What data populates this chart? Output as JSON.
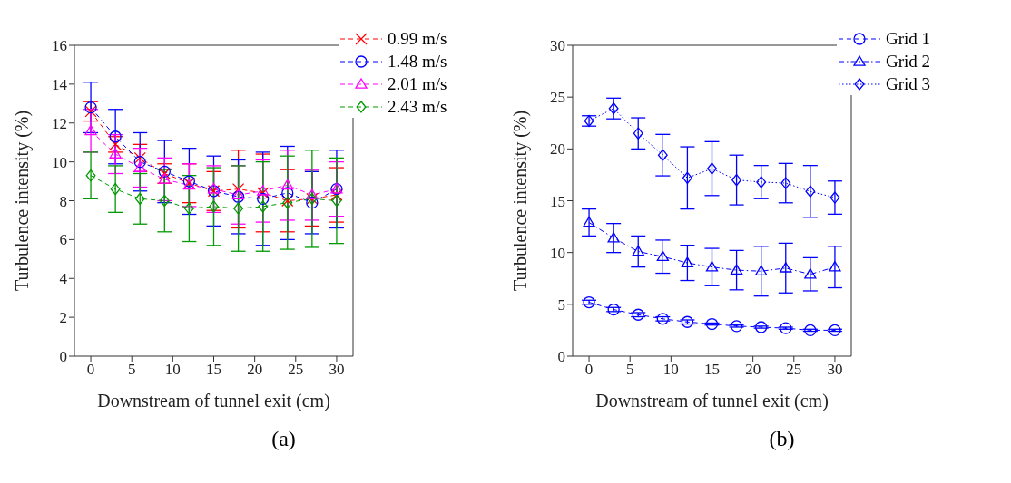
{
  "chart_data": [
    {
      "type": "line",
      "x": [
        0,
        3,
        6,
        9,
        12,
        15,
        18,
        21,
        24,
        27,
        30
      ],
      "xlabel": "Downstream of tunnel exit (cm)",
      "ylabel": "Turbulence intensity (%)",
      "xlim": [
        -2,
        32
      ],
      "xticks": [
        0,
        5,
        10,
        15,
        20,
        25,
        30
      ],
      "ylim": [
        0,
        16
      ],
      "yticks": [
        0,
        2,
        4,
        6,
        8,
        10,
        12,
        14,
        16
      ],
      "legend": "top right",
      "line_style": "dashed",
      "annotations": [
        "(a)"
      ],
      "series": [
        {
          "name": "0.99 m/s",
          "color": "#ff0000",
          "marker": "cross",
          "values": [
            12.6,
            10.9,
            10.2,
            9.4,
            8.9,
            8.5,
            8.6,
            8.4,
            8.0,
            8.1,
            8.3
          ],
          "errors": [
            0.5,
            0.4,
            0.7,
            0.5,
            1.0,
            1.0,
            2.0,
            2.0,
            1.6,
            1.4,
            1.4
          ]
        },
        {
          "name": "1.48 m/s",
          "color": "#0000ff",
          "marker": "circle",
          "values": [
            12.8,
            11.3,
            10.0,
            9.5,
            9.0,
            8.5,
            8.2,
            8.1,
            8.4,
            7.9,
            8.6
          ],
          "errors": [
            1.3,
            1.4,
            1.5,
            1.6,
            1.7,
            1.8,
            1.9,
            2.4,
            2.4,
            1.6,
            2.0
          ]
        },
        {
          "name": "2.01 m/s",
          "color": "#ff00ff",
          "marker": "triangle",
          "values": [
            11.6,
            10.4,
            9.7,
            9.1,
            8.8,
            8.6,
            8.3,
            8.5,
            8.8,
            8.3,
            8.6
          ],
          "errors": [
            1.1,
            1.0,
            1.0,
            1.1,
            1.1,
            1.2,
            1.5,
            1.6,
            1.8,
            1.3,
            1.4
          ]
        },
        {
          "name": "2.43 m/s",
          "color": "#009900",
          "marker": "diamond",
          "values": [
            9.3,
            8.6,
            8.1,
            8.0,
            7.6,
            7.7,
            7.6,
            7.7,
            7.9,
            8.1,
            8.0
          ],
          "errors": [
            1.2,
            1.2,
            1.3,
            1.6,
            1.7,
            2.0,
            2.2,
            2.3,
            2.4,
            2.5,
            2.2
          ]
        }
      ]
    },
    {
      "type": "line",
      "x": [
        0,
        3,
        6,
        9,
        12,
        15,
        18,
        21,
        24,
        27,
        30
      ],
      "xlabel": "Downstream of tunnel exit (cm)",
      "ylabel": "Turbulence intensity (%)",
      "xlim": [
        -2,
        32
      ],
      "xticks": [
        0,
        5,
        10,
        15,
        20,
        25,
        30
      ],
      "ylim": [
        0,
        30
      ],
      "yticks": [
        0,
        5,
        10,
        15,
        20,
        25,
        30
      ],
      "legend": "top right",
      "annotations": [
        "(b)"
      ],
      "series": [
        {
          "name": "Grid 1",
          "color": "#0000ff",
          "marker": "circle",
          "line_style": "dashed",
          "values": [
            5.2,
            4.5,
            4.0,
            3.6,
            3.3,
            3.1,
            2.9,
            2.8,
            2.7,
            2.5,
            2.5
          ],
          "errors": [
            0.2,
            0.2,
            0.2,
            0.2,
            0.2,
            0.1,
            0.1,
            0.1,
            0.1,
            0.1,
            0.1
          ]
        },
        {
          "name": "Grid 2",
          "color": "#0000ff",
          "marker": "triangle",
          "line_style": "dashdot",
          "values": [
            12.9,
            11.4,
            10.1,
            9.6,
            9.0,
            8.6,
            8.3,
            8.2,
            8.5,
            7.9,
            8.6
          ],
          "errors": [
            1.3,
            1.4,
            1.5,
            1.6,
            1.7,
            1.8,
            1.9,
            2.4,
            2.4,
            1.6,
            2.0
          ]
        },
        {
          "name": "Grid 3",
          "color": "#0000ff",
          "marker": "diamond",
          "line_style": "dotted",
          "values": [
            22.7,
            23.9,
            21.5,
            19.4,
            17.2,
            18.1,
            17.0,
            16.8,
            16.7,
            15.9,
            15.3
          ],
          "errors": [
            0.5,
            1.0,
            1.5,
            2.0,
            3.0,
            2.6,
            2.4,
            1.6,
            1.9,
            2.5,
            1.6
          ]
        }
      ]
    }
  ]
}
